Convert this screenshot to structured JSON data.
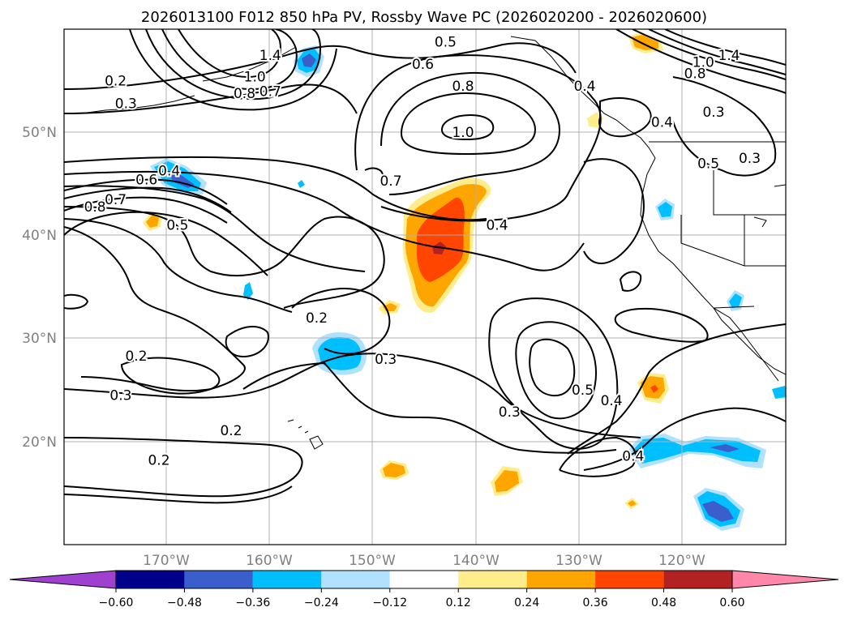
{
  "chart_data": {
    "type": "contour-map",
    "title": "2026013100 F012 850 hPa PV, Rossby Wave PC (2026020200 - 2026020600)",
    "lat_ticks": [
      {
        "value": 50,
        "label": "50°N"
      },
      {
        "value": 40,
        "label": "40°N"
      },
      {
        "value": 30,
        "label": "30°N"
      },
      {
        "value": 20,
        "label": "20°N"
      }
    ],
    "lon_ticks": [
      {
        "value": -170,
        "label": "170°W"
      },
      {
        "value": -160,
        "label": "160°W"
      },
      {
        "value": -150,
        "label": "150°W"
      },
      {
        "value": -140,
        "label": "140°W"
      },
      {
        "value": -130,
        "label": "130°W"
      },
      {
        "value": -120,
        "label": "120°W"
      }
    ],
    "lon_range": [
      -180,
      -110
    ],
    "lat_range": [
      10,
      60
    ],
    "contour_labels": [
      {
        "text": "0.5",
        "lon": -143,
        "lat": 58.8
      },
      {
        "text": "0.6",
        "lon": -145.2,
        "lat": 56.6
      },
      {
        "text": "0.8",
        "lon": -141.3,
        "lat": 54.5
      },
      {
        "text": "1.0",
        "lon": -141.3,
        "lat": 50.0
      },
      {
        "text": "0.7",
        "lon": -148.3,
        "lat": 45.3
      },
      {
        "text": "0.4",
        "lon": -138.0,
        "lat": 41.0
      },
      {
        "text": "0.2",
        "lon": -155.5,
        "lat": 32.0
      },
      {
        "text": "0.3",
        "lon": -148.8,
        "lat": 28.0
      },
      {
        "text": "0.2",
        "lon": -173.0,
        "lat": 28.3
      },
      {
        "text": "0.3",
        "lon": -174.5,
        "lat": 24.5
      },
      {
        "text": "0.2",
        "lon": -163.8,
        "lat": 21.1
      },
      {
        "text": "0.2",
        "lon": -170.8,
        "lat": 18.2
      },
      {
        "text": "0.3",
        "lon": -136.8,
        "lat": 22.9
      },
      {
        "text": "0.5",
        "lon": -129.7,
        "lat": 25.0
      },
      {
        "text": "0.4",
        "lon": -126.9,
        "lat": 24.0
      },
      {
        "text": "0.4",
        "lon": -124.8,
        "lat": 18.6
      },
      {
        "text": "1.4",
        "lon": -160.0,
        "lat": 57.5
      },
      {
        "text": "1.0",
        "lon": -161.5,
        "lat": 55.4
      },
      {
        "text": "0.8",
        "lon": -162.5,
        "lat": 53.8
      },
      {
        "text": "0.7",
        "lon": -160.0,
        "lat": 54.0
      },
      {
        "text": "0.2",
        "lon": -175.0,
        "lat": 55.0
      },
      {
        "text": "0.3",
        "lon": -174.0,
        "lat": 52.8
      },
      {
        "text": "0.6",
        "lon": -172.0,
        "lat": 45.4
      },
      {
        "text": "0.4",
        "lon": -169.8,
        "lat": 46.3
      },
      {
        "text": "0.7",
        "lon": -175.0,
        "lat": 43.5
      },
      {
        "text": "0.8",
        "lon": -177.0,
        "lat": 42.8
      },
      {
        "text": "0.5",
        "lon": -169.0,
        "lat": 41.0
      },
      {
        "text": "0.4",
        "lon": -129.5,
        "lat": 54.5
      },
      {
        "text": "0.4",
        "lon": -122.0,
        "lat": 51.0
      },
      {
        "text": "0.5",
        "lon": -117.5,
        "lat": 47.0
      },
      {
        "text": "0.3",
        "lon": -117.0,
        "lat": 52.0
      },
      {
        "text": "1.4",
        "lon": -115.5,
        "lat": 57.5
      },
      {
        "text": "1.0",
        "lon": -118.0,
        "lat": 56.8
      },
      {
        "text": "0.8",
        "lon": -118.8,
        "lat": 55.7
      },
      {
        "text": "0.3",
        "lon": -113.5,
        "lat": 47.5
      }
    ],
    "colorbar": {
      "ticks": [
        "−0.60",
        "−0.48",
        "−0.36",
        "−0.24",
        "−0.12",
        "0.12",
        "0.24",
        "0.36",
        "0.48",
        "0.60"
      ],
      "colors": [
        "#a040d0",
        "#00008b",
        "#3a5fcd",
        "#00bfff",
        "#b0e2ff",
        "#ffffff",
        "#ffec8b",
        "#ffa500",
        "#ff4500",
        "#b22222",
        "#ff88aa"
      ]
    }
  }
}
